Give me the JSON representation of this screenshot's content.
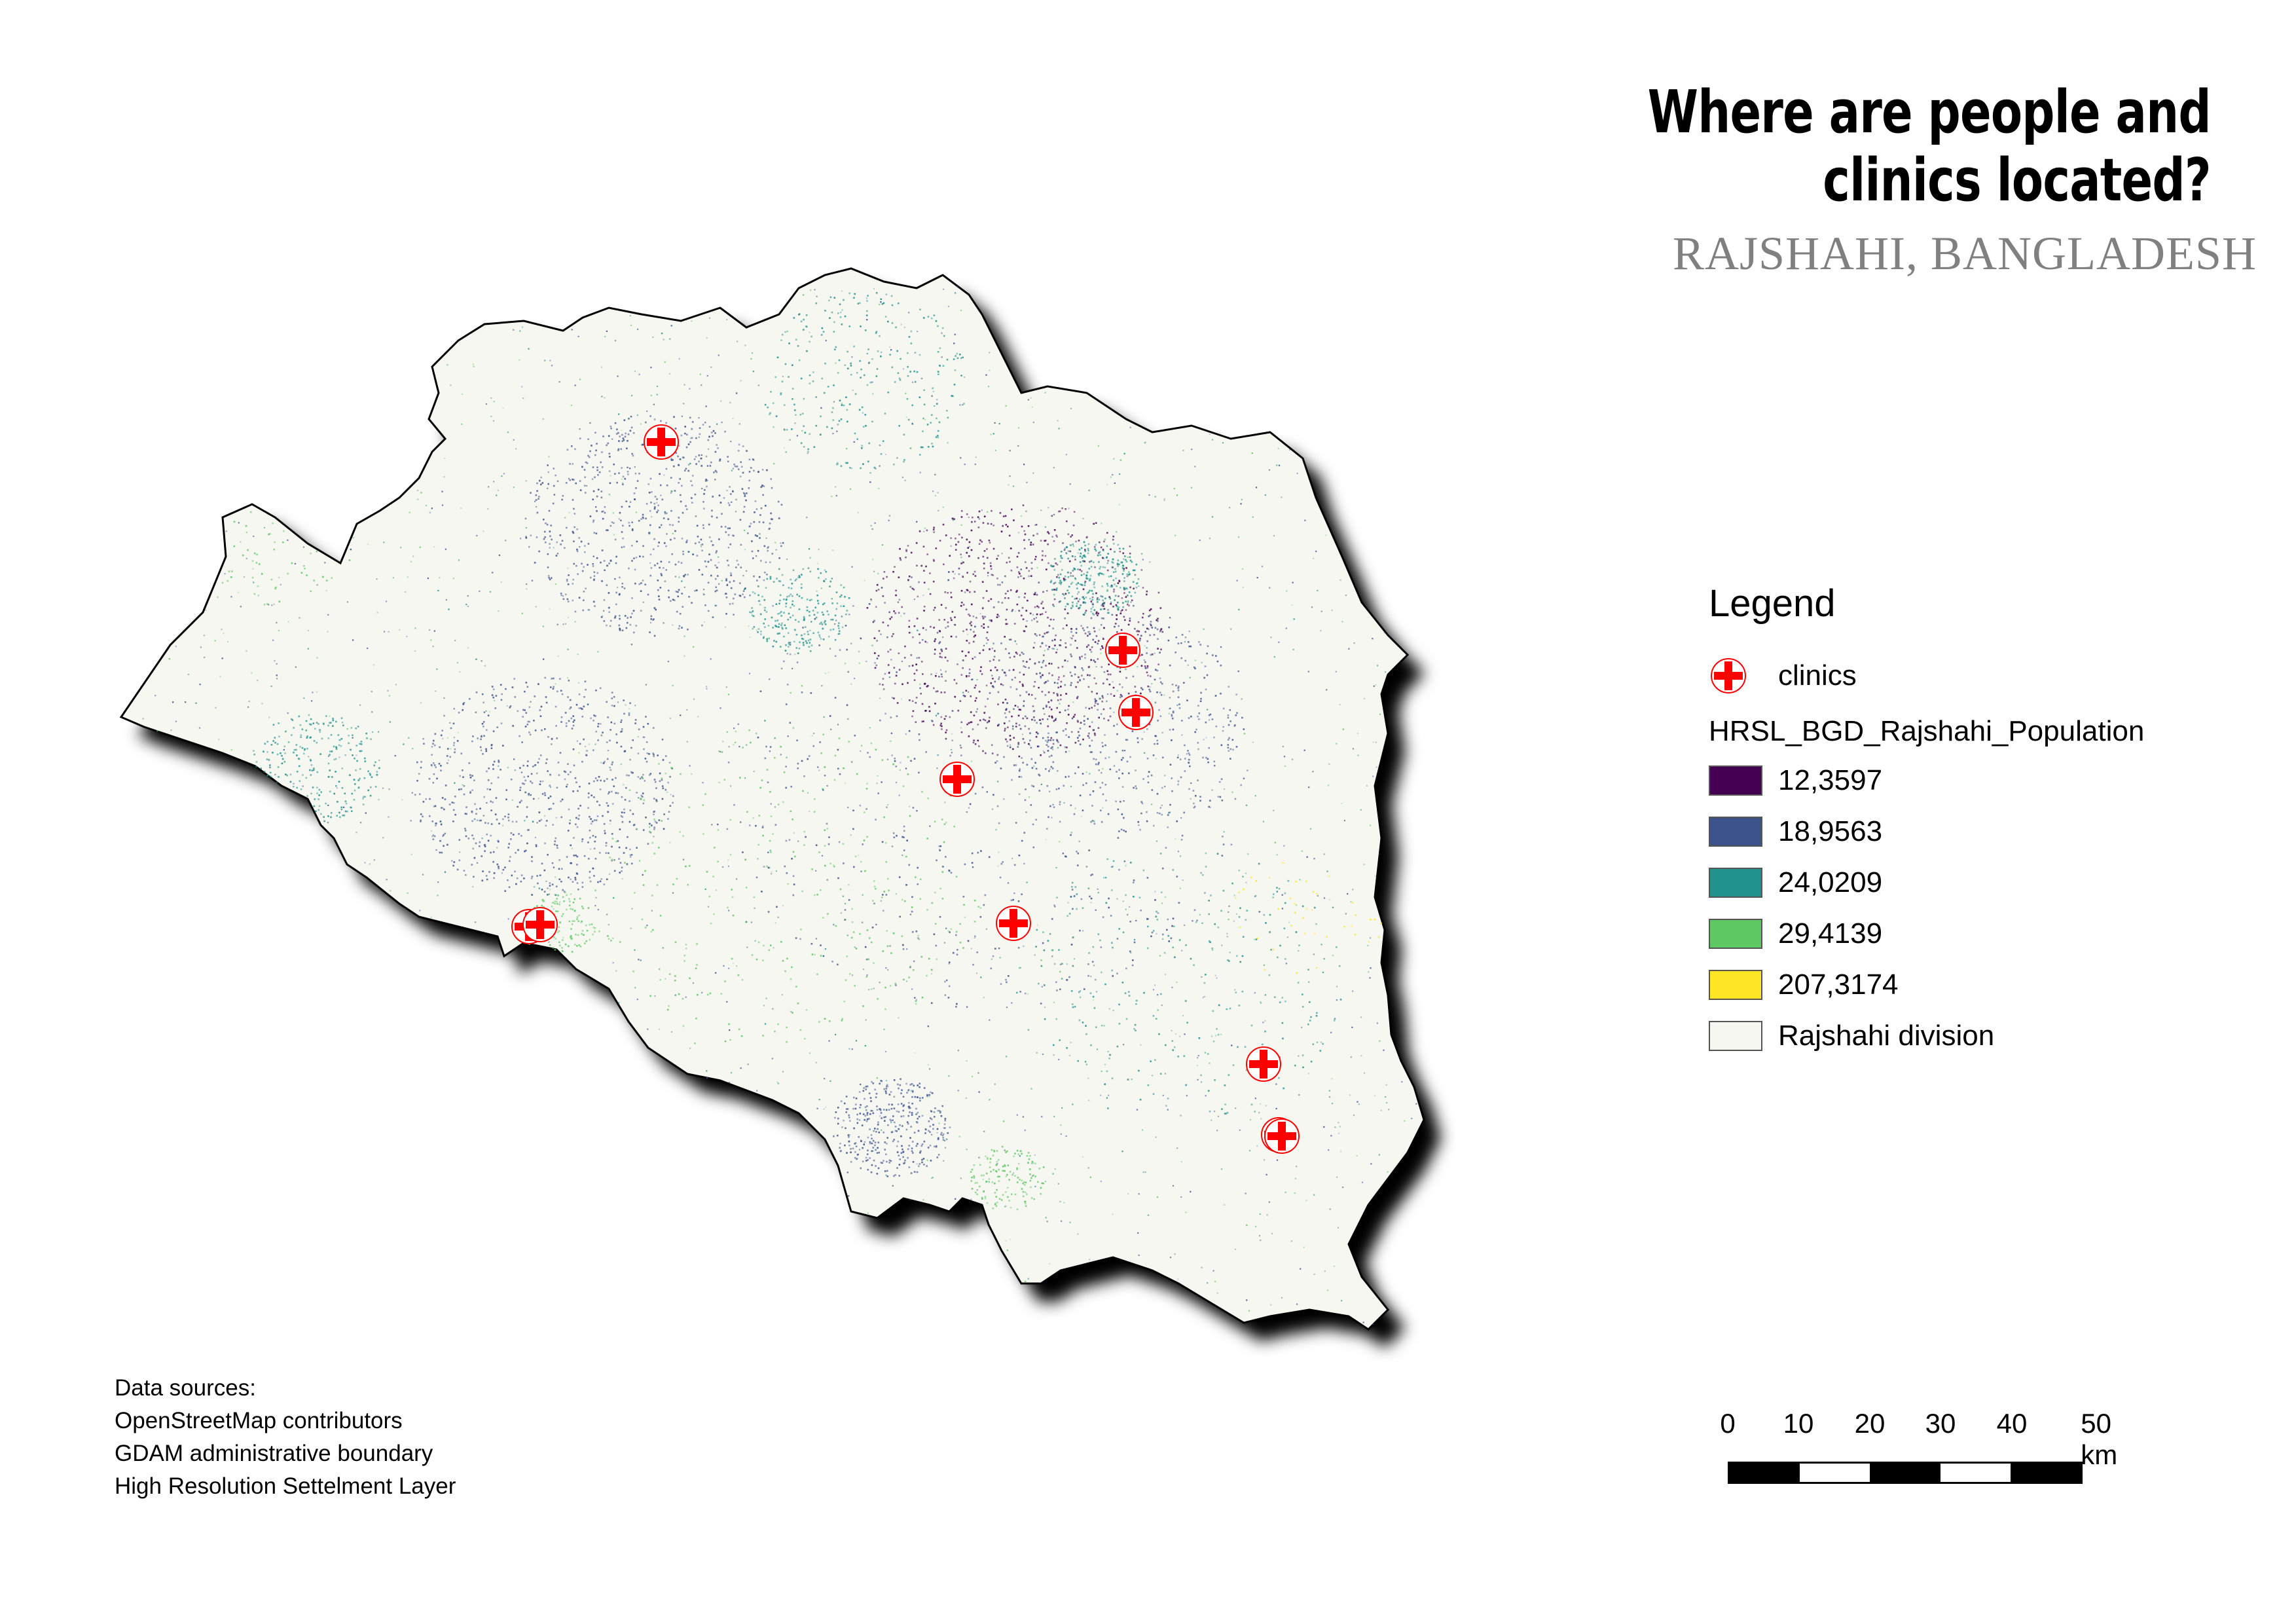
{
  "title": {
    "line1": "Where are people and",
    "line2": "clinics located?"
  },
  "subtitle": "RAJSHAHI, BANGLADESH",
  "legend": {
    "title": "Legend",
    "clinics_label": "clinics",
    "population_layer": "HRSL_BGD_Rajshahi_Population",
    "classes": [
      {
        "label": "12,3597",
        "color": "#440154"
      },
      {
        "label": "18,9563",
        "color": "#3b528b"
      },
      {
        "label": "24,0209",
        "color": "#21918c"
      },
      {
        "label": "29,4139",
        "color": "#5ec962"
      },
      {
        "label": "207,3174",
        "color": "#fde725"
      }
    ],
    "division_label": "Rajshahi division",
    "division_color": "#f7f7f2"
  },
  "scale": {
    "labels": [
      "0",
      "10",
      "20",
      "30",
      "40",
      "50 km"
    ]
  },
  "sources": {
    "heading": "Data sources:",
    "lines": [
      "OpenStreetMap contributors",
      "GDAM administrative boundary",
      "High Resolution Settelment Layer"
    ]
  },
  "colors": {
    "clinic_red": "#ff0000",
    "boundary": "#000000",
    "shadow": "#000000"
  }
}
